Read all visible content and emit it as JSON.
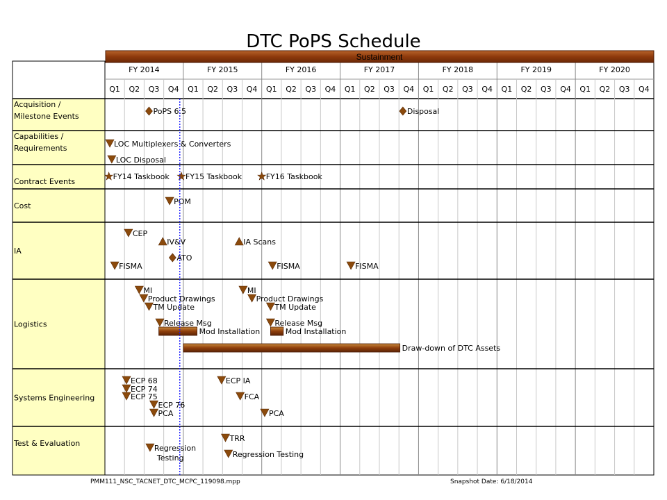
{
  "title": "DTC PoPS Schedule",
  "band": {
    "label": "Sustainment"
  },
  "fiscal_years": [
    "FY 2014",
    "FY 2015",
    "FY 2016",
    "FY 2017",
    "FY 2018",
    "FY 2019",
    "FY 2020"
  ],
  "quarters": [
    "Q1",
    "Q2",
    "Q3",
    "Q4"
  ],
  "status_date_quarter": 3.82,
  "rows": [
    {
      "label": [
        "Acquisition /",
        "Milestone Events"
      ],
      "events": [
        {
          "shape": "diamond",
          "q": 2.25,
          "label": "PoPS 6.5"
        },
        {
          "shape": "diamond",
          "q": 15.2,
          "label": "Disposal"
        }
      ]
    },
    {
      "label": [
        "Capabilities /",
        "Requirements"
      ],
      "events": [
        {
          "shape": "tri-down",
          "q": 0.25,
          "line": 0,
          "label": "LOC Multiplexers & Converters"
        },
        {
          "shape": "tri-down",
          "q": 0.35,
          "line": 1,
          "label": "LOC Disposal"
        }
      ]
    },
    {
      "label": [
        "Contract Events"
      ],
      "events": [
        {
          "shape": "star",
          "q": 0.2,
          "label": "FY14 Taskbook"
        },
        {
          "shape": "star",
          "q": 3.9,
          "label": "FY15 Taskbook"
        },
        {
          "shape": "star",
          "q": 8.0,
          "label": "FY16 Taskbook"
        }
      ]
    },
    {
      "label": [
        "Cost"
      ],
      "events": [
        {
          "shape": "tri-down",
          "q": 3.3,
          "label": "POM"
        }
      ]
    },
    {
      "label": [
        "IA"
      ],
      "events": [
        {
          "shape": "tri-down",
          "q": 1.2,
          "line": 0,
          "label": "CEP"
        },
        {
          "shape": "tri-up",
          "q": 2.95,
          "line": 1,
          "label": "IV&V"
        },
        {
          "shape": "tri-up",
          "q": 6.85,
          "line": 1,
          "label": "IA Scans"
        },
        {
          "shape": "diamond",
          "q": 3.45,
          "line": 2,
          "label": "ATO"
        },
        {
          "shape": "tri-down",
          "q": 0.5,
          "line": 3,
          "label": "FISMA"
        },
        {
          "shape": "tri-down",
          "q": 8.55,
          "line": 3,
          "label": "FISMA"
        },
        {
          "shape": "tri-down",
          "q": 12.55,
          "line": 3,
          "label": "FISMA"
        }
      ]
    },
    {
      "label": [
        "Logistics"
      ],
      "events": [
        {
          "shape": "tri-down",
          "q": 1.75,
          "line": 0,
          "label": "MI"
        },
        {
          "shape": "tri-down",
          "q": 7.05,
          "line": 0,
          "label": "MI"
        },
        {
          "shape": "tri-down",
          "q": 1.98,
          "line": 1,
          "label": "Product Drawings"
        },
        {
          "shape": "tri-down",
          "q": 7.5,
          "line": 1,
          "label": "Product Drawings"
        },
        {
          "shape": "tri-down",
          "q": 2.25,
          "line": 2,
          "label": "TM Update"
        },
        {
          "shape": "tri-down",
          "q": 8.45,
          "line": 2,
          "label": "TM Update"
        },
        {
          "shape": "tri-down",
          "q": 2.8,
          "line": 3,
          "label": "Release Msg"
        },
        {
          "shape": "tri-down",
          "q": 8.45,
          "line": 3,
          "label": "Release Msg"
        }
      ],
      "bars": [
        {
          "start": 2.75,
          "end": 4.7,
          "line": 4,
          "label": "Mod Installation"
        },
        {
          "start": 8.45,
          "end": 9.1,
          "line": 4,
          "label": "Mod Installation"
        },
        {
          "start": 4.0,
          "end": 15.05,
          "line": 5,
          "label": "Draw-down of DTC Assets"
        }
      ]
    },
    {
      "label": [
        "Systems Engineering"
      ],
      "events": [
        {
          "shape": "tri-down",
          "q": 1.1,
          "line": 0,
          "label": "ECP 68"
        },
        {
          "shape": "tri-down",
          "q": 5.95,
          "line": 0,
          "label": "ECP IA"
        },
        {
          "shape": "tri-down",
          "q": 1.1,
          "line": 1,
          "label": "ECP 74"
        },
        {
          "shape": "tri-down",
          "q": 1.1,
          "line": 2,
          "label": "ECP 75"
        },
        {
          "shape": "tri-down",
          "q": 6.9,
          "line": 2,
          "label": "FCA"
        },
        {
          "shape": "tri-down",
          "q": 2.5,
          "line": 3,
          "label": "ECP 76"
        },
        {
          "shape": "tri-down",
          "q": 2.5,
          "line": 4,
          "label": "PCA"
        },
        {
          "shape": "tri-down",
          "q": 8.15,
          "line": 4,
          "label": "PCA"
        }
      ]
    },
    {
      "label": [
        "Test & Evaluation"
      ],
      "events": [
        {
          "shape": "tri-down",
          "q": 6.15,
          "line": 0,
          "label": "TRR"
        },
        {
          "shape": "tri-down",
          "q": 2.3,
          "line": 1,
          "label": "Regression",
          "label2": "Testing"
        },
        {
          "shape": "tri-down",
          "q": 6.3,
          "line": 2,
          "label": "Regression Testing"
        }
      ]
    }
  ],
  "footer": {
    "file": "PMM111_NSC_TACNET_DTC_MCPC_119098.mpp",
    "snapshot": "Snapshot Date: 6/18/2014"
  },
  "colors": {
    "marker": "#8b4a0c",
    "bar": "#9c4a12",
    "band": "#9c3f10",
    "label_column": "#ffffc2",
    "status_line": "#1a1aff"
  }
}
